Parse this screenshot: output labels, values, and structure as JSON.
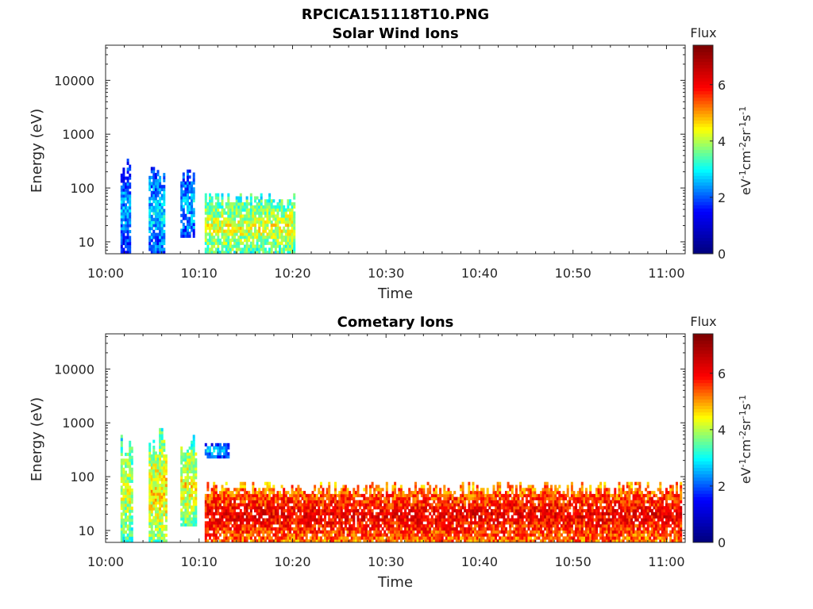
{
  "figure_title": "RPCICA151118T10.PNG",
  "colormap": {
    "name": "jet",
    "stops": [
      "#000080",
      "#0000ff",
      "#00ffff",
      "#ffff00",
      "#ff0000",
      "#800000"
    ]
  },
  "chart_data": [
    {
      "type": "heatmap",
      "title": "Solar Wind Ions",
      "xlabel": "Time",
      "ylabel": "Energy (eV)",
      "x_ticks": [
        "10:00",
        "10:10",
        "10:20",
        "10:30",
        "10:40",
        "10:50",
        "11:00"
      ],
      "x_range_minutes": [
        0,
        62
      ],
      "y_scale": "log",
      "y_ticks": [
        "10",
        "100",
        "1000",
        "10000"
      ],
      "y_range": [
        6,
        45000
      ],
      "colorbar": {
        "title": "Flux",
        "label": "eV-1cm-2sr-1s-1",
        "ticks": [
          "0",
          "2",
          "4",
          "6"
        ],
        "range": [
          0,
          7.4
        ]
      },
      "blocks": [
        {
          "t0": 1.6,
          "t1": 2.6,
          "e_min": 6,
          "e_max": 350,
          "flux": 2.5
        },
        {
          "t0": 4.6,
          "t1": 6.2,
          "e_min": 6,
          "e_max": 280,
          "flux": 2.8
        },
        {
          "t0": 8.0,
          "t1": 9.4,
          "e_min": 12,
          "e_max": 250,
          "flux": 2.7
        },
        {
          "t0": 10.6,
          "t1": 20.2,
          "e_min": 6,
          "e_max": 80,
          "flux": 4.3
        }
      ]
    },
    {
      "type": "heatmap",
      "title": "Cometary Ions",
      "xlabel": "Time",
      "ylabel": "Energy (eV)",
      "x_ticks": [
        "10:00",
        "10:10",
        "10:20",
        "10:30",
        "10:40",
        "10:50",
        "11:00"
      ],
      "x_range_minutes": [
        0,
        62
      ],
      "y_scale": "log",
      "y_ticks": [
        "10",
        "100",
        "1000",
        "10000"
      ],
      "y_range": [
        6,
        45000
      ],
      "colorbar": {
        "title": "Flux",
        "label": "eV-1cm-2sr-1s-1",
        "ticks": [
          "0",
          "2",
          "4",
          "6"
        ],
        "range": [
          0,
          7.4
        ]
      },
      "blocks": [
        {
          "t0": 1.6,
          "t1": 2.8,
          "e_min": 6,
          "e_max": 600,
          "flux": 4.2
        },
        {
          "t0": 4.6,
          "t1": 6.4,
          "e_min": 6,
          "e_max": 800,
          "flux": 4.6
        },
        {
          "t0": 8.0,
          "t1": 9.6,
          "e_min": 12,
          "e_max": 600,
          "flux": 4.5
        },
        {
          "t0": 10.6,
          "t1": 13.2,
          "e_min": 220,
          "e_max": 420,
          "flux": 2.6
        },
        {
          "t0": 10.6,
          "t1": 61.5,
          "e_min": 6,
          "e_max": 80,
          "flux": 6.2
        }
      ]
    }
  ]
}
